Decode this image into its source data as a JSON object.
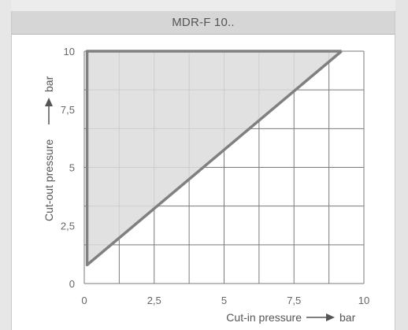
{
  "header": {
    "title": "MDR-F 10.."
  },
  "chart_data": {
    "type": "area",
    "title": "MDR-F 10..",
    "xlabel": "Cut-in pressure",
    "xunit": "bar",
    "ylabel": "Cut-out pressure",
    "yunit": "bar",
    "xlim": [
      0,
      10
    ],
    "ylim": [
      0,
      10
    ],
    "grid": true,
    "x_ticks": [
      0,
      2.5,
      5,
      7.5,
      10
    ],
    "x_tick_labels": [
      "0",
      "2,5",
      "5",
      "7,5",
      "10"
    ],
    "y_ticks": [
      0,
      2.5,
      5,
      7.5,
      10
    ],
    "y_tick_labels": [
      "0",
      "2,5",
      "5",
      "7,5",
      "10"
    ],
    "region": {
      "x": [
        0.1,
        0.1,
        9.2
      ],
      "y": [
        0.8,
        10,
        10
      ],
      "fill": "#dcdcdc",
      "line_color": "#808080"
    },
    "colors": {
      "grid": "#7a7a7a",
      "region": "#dcdcdc",
      "line": "#808080"
    }
  }
}
